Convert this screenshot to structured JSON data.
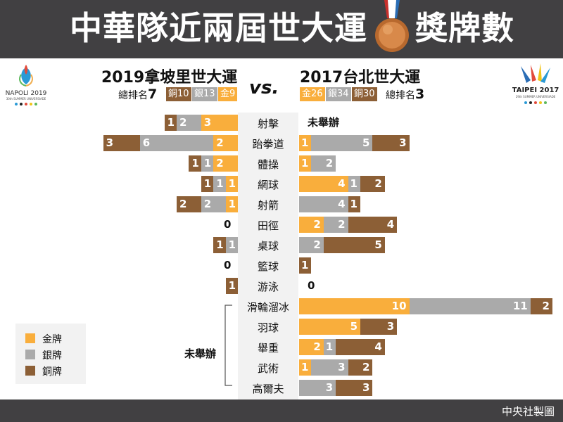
{
  "header": {
    "title_a": "中華隊近兩屆世大運",
    "title_b": "獎牌數"
  },
  "left": {
    "event": "2019拿坡里世大運",
    "rank_label": "總排名",
    "rank": "7",
    "pills": [
      {
        "label": "銅10",
        "cls": "bronze"
      },
      {
        "label": "銀13",
        "cls": "silver"
      },
      {
        "label": "金9",
        "cls": "gold"
      }
    ],
    "logo_text": "NAPOLI 2019",
    "logo_sub": "30th SUMMER UNIVERSIADE"
  },
  "vs": "vs.",
  "right": {
    "event": "2017台北世大運",
    "rank_label": "總排名",
    "rank": "3",
    "pills": [
      {
        "label": "金26",
        "cls": "gold"
      },
      {
        "label": "銀34",
        "cls": "silver"
      },
      {
        "label": "銅30",
        "cls": "bronze"
      }
    ],
    "logo_text": "TAIPEI 2017",
    "logo_sub": "29th SUMMER UNIVERSIADE"
  },
  "colors": {
    "gold": "#f9ae3c",
    "silver": "#aaaaaa",
    "bronze": "#8c5f36",
    "header": "#414042"
  },
  "chart_data": {
    "type": "bar",
    "orientation": "horizontal-diverging",
    "categories": [
      "射擊",
      "跆拳道",
      "體操",
      "網球",
      "射箭",
      "田徑",
      "桌球",
      "籃球",
      "游泳",
      "滑輪溜冰",
      "羽球",
      "舉重",
      "武術",
      "高爾夫"
    ],
    "series": [
      {
        "name": "2019拿坡里世大運",
        "gold": [
          3,
          2,
          2,
          1,
          1,
          0,
          0,
          0,
          0,
          null,
          null,
          null,
          null,
          null
        ],
        "silver": [
          2,
          6,
          1,
          1,
          2,
          0,
          1,
          0,
          0,
          null,
          null,
          null,
          null,
          null
        ],
        "bronze": [
          1,
          3,
          1,
          1,
          2,
          0,
          1,
          0,
          1,
          null,
          null,
          null,
          null,
          null
        ]
      },
      {
        "name": "2017台北世大運",
        "gold": [
          null,
          1,
          1,
          4,
          0,
          2,
          0,
          0,
          0,
          10,
          5,
          2,
          1,
          0
        ],
        "silver": [
          null,
          5,
          2,
          1,
          4,
          2,
          2,
          0,
          0,
          11,
          0,
          1,
          3,
          3
        ],
        "bronze": [
          null,
          3,
          0,
          2,
          1,
          4,
          5,
          1,
          0,
          2,
          3,
          4,
          2,
          3
        ]
      }
    ],
    "not_held_label": "未舉辦",
    "zero_label": "0",
    "legend": [
      "金牌",
      "銀牌",
      "銅牌"
    ]
  },
  "footer": {
    "credit": "中央社製圖"
  }
}
